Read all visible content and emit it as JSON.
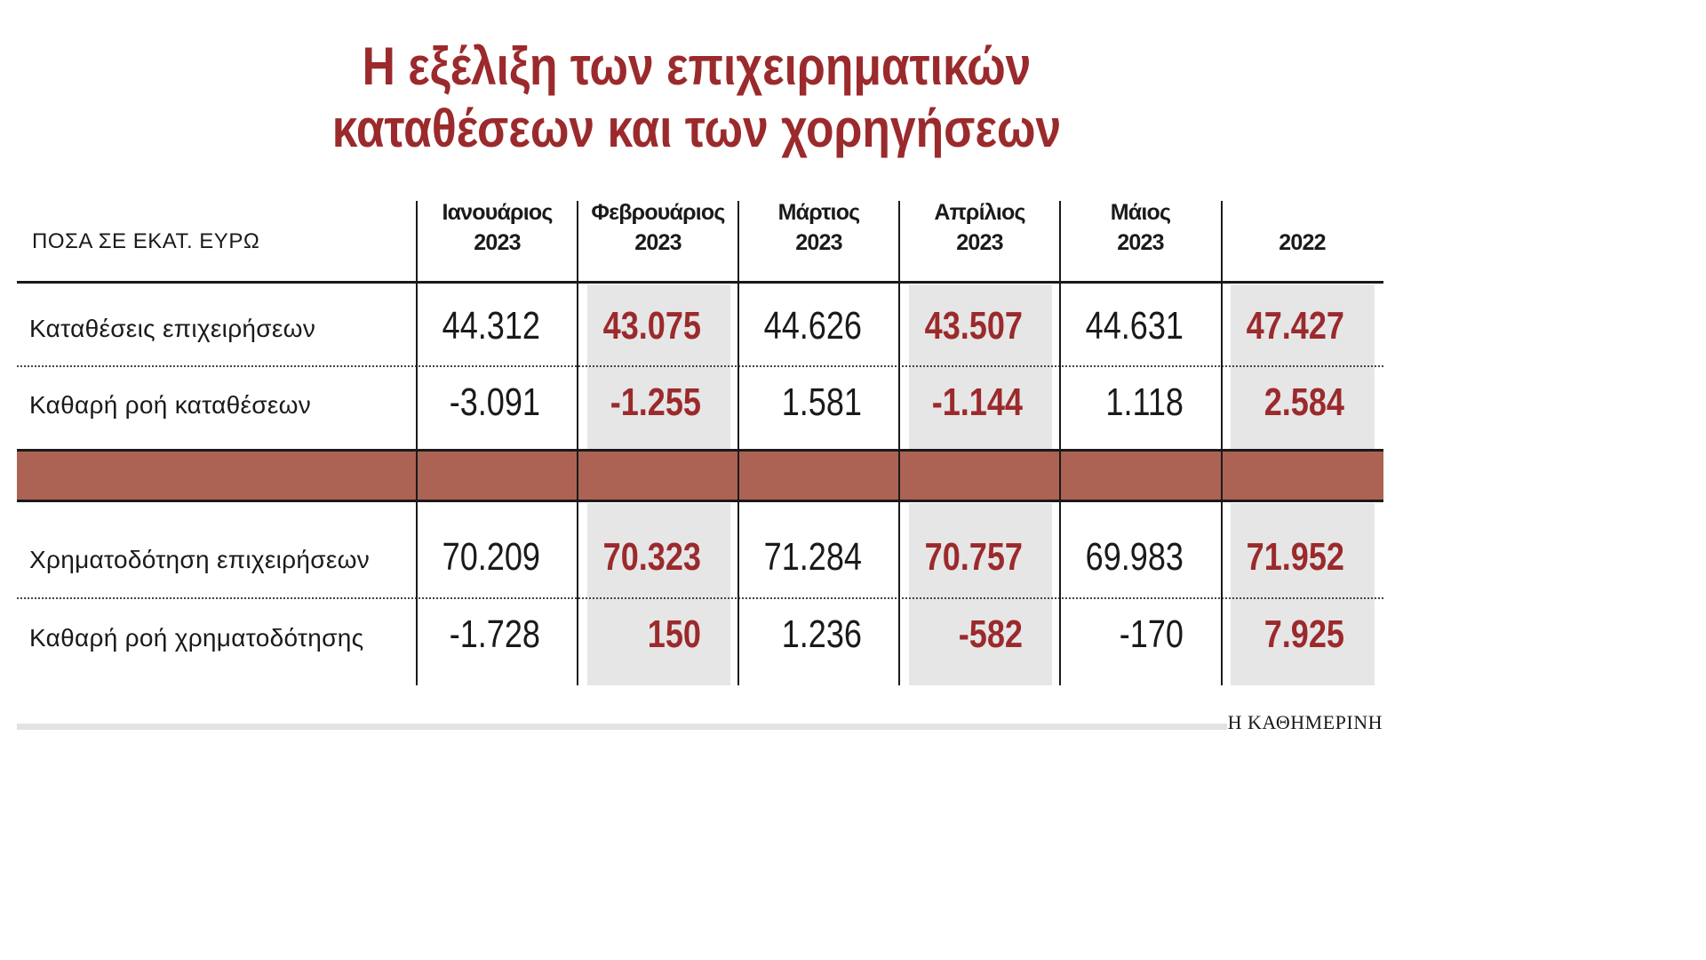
{
  "chart_data": {
    "type": "table",
    "title": "Η εξέλιξη των επιχειρηματικών καταθέσεων και των χορηγήσεων",
    "title_lines": [
      "Η εξέλιξη των επιχειρηματικών",
      "καταθέσεων και των χορηγήσεων"
    ],
    "units_label": "ΠΟΣΑ ΣΕ ΕΚΑΤ. ΕΥΡΩ",
    "columns": [
      {
        "line1": "Ιανουάριος",
        "line2": "2023"
      },
      {
        "line1": "Φεβρουάριος",
        "line2": "2023"
      },
      {
        "line1": "Μάρτιος",
        "line2": "2023"
      },
      {
        "line1": "Απρίλιος",
        "line2": "2023"
      },
      {
        "line1": "Μάιος",
        "line2": "2023"
      },
      {
        "line1": "",
        "line2": "2022"
      }
    ],
    "rows": [
      {
        "label": "Καταθέσεις επιχειρήσεων",
        "values": [
          "44.312",
          "43.075",
          "44.626",
          "43.507",
          "44.631",
          "47.427"
        ]
      },
      {
        "label": "Καθαρή ροή καταθέσεων",
        "values": [
          "-3.091",
          "-1.255",
          "1.581",
          "-1.144",
          "1.118",
          "2.584"
        ]
      },
      {
        "label": "Χρηματοδότηση επιχειρήσεων",
        "values": [
          "70.209",
          "70.323",
          "71.284",
          "70.757",
          "69.983",
          "71.952"
        ]
      },
      {
        "label": "Καθαρή ροή χρηματοδότησης",
        "values": [
          "-1.728",
          "150",
          "1.236",
          "-582",
          "-170",
          "7.925"
        ]
      }
    ],
    "highlight_columns": [
      1,
      3,
      5
    ]
  },
  "colors": {
    "accent": "#9b2a2c",
    "band": "#ac6353",
    "shade": "#e6e6e6",
    "text": "#1a1a1a"
  },
  "footer": {
    "brand": "Η ΚΑΘΗΜΕΡΙΝΗ"
  }
}
